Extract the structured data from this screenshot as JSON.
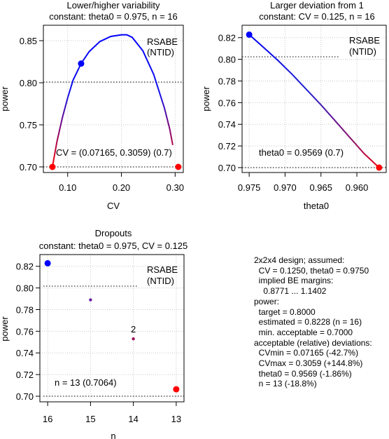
{
  "chart_data": [
    {
      "type": "line",
      "title": "Lower/higher variability",
      "subtitle": "constant: theta0 = 0.975, n = 16",
      "xlabel": "CV",
      "ylabel": "power",
      "xlim": [
        0.06,
        0.31
      ],
      "ylim": [
        0.7,
        0.86
      ],
      "xticks": [
        0.1,
        0.2,
        0.3
      ],
      "xtick_labels": [
        "0.10",
        "0.20",
        "0.30"
      ],
      "yticks": [
        0.7,
        0.75,
        0.8,
        0.85
      ],
      "ytick_labels": [
        "0.70",
        "0.75",
        "0.80",
        "0.85"
      ],
      "grid": true,
      "target": 0.8,
      "legend": [
        "RSABE",
        "(NTID)"
      ],
      "legend_position": "top-right",
      "annotation": "CV = (0.07165, 0.3059) (0.7)",
      "series": [
        {
          "x": [
            0.07165,
            0.08,
            0.09,
            0.1,
            0.11,
            0.125,
            0.14,
            0.16,
            0.18,
            0.2,
            0.21,
            0.22,
            0.24,
            0.26,
            0.28,
            0.29,
            0.2955
          ],
          "y": [
            0.7,
            0.73,
            0.758,
            0.782,
            0.803,
            0.8228,
            0.837,
            0.849,
            0.855,
            0.857,
            0.857,
            0.854,
            0.838,
            0.81,
            0.77,
            0.745,
            0.726
          ]
        }
      ],
      "markers": [
        {
          "x": 0.125,
          "y": 0.8228,
          "color": "#0000ff"
        },
        {
          "x": 0.07165,
          "y": 0.7,
          "color": "#ff0000"
        },
        {
          "x": 0.3059,
          "y": 0.7,
          "color": "#ff0000"
        }
      ]
    },
    {
      "type": "line",
      "title": "Larger deviation from 1",
      "subtitle": "constant: CV = 0.125, n = 16",
      "xlabel": "theta0",
      "ylabel": "power",
      "xlim": [
        0.9756,
        0.9563
      ],
      "ylim": [
        0.7,
        0.825
      ],
      "xticks": [
        0.975,
        0.97,
        0.965,
        0.96
      ],
      "xtick_labels": [
        "0.975",
        "0.970",
        "0.965",
        "0.960"
      ],
      "yticks": [
        0.7,
        0.72,
        0.74,
        0.76,
        0.78,
        0.8,
        0.82
      ],
      "ytick_labels": [
        "0.70",
        "0.72",
        "0.74",
        "0.76",
        "0.78",
        "0.80",
        "0.82"
      ],
      "grid": true,
      "target": 0.8,
      "legend": [
        "RSABE",
        "(NTID)"
      ],
      "legend_position": "top-right",
      "annotation": "theta0 = 0.9569 (0.7)",
      "series": [
        {
          "x": [
            0.975,
            0.973,
            0.971,
            0.969,
            0.967,
            0.965,
            0.963,
            0.961,
            0.959,
            0.9569
          ],
          "y": [
            0.8228,
            0.811,
            0.799,
            0.786,
            0.772,
            0.758,
            0.743,
            0.728,
            0.713,
            0.7
          ]
        }
      ],
      "markers": [
        {
          "x": 0.975,
          "y": 0.8228,
          "color": "#0000ff"
        },
        {
          "x": 0.9569,
          "y": 0.7,
          "color": "#ff0000"
        }
      ]
    },
    {
      "type": "scatter",
      "title": "Dropouts",
      "subtitle": "constant: theta0 = 0.975, CV = 0.125",
      "xlabel": "n",
      "ylabel": "power",
      "xlim": [
        16.1,
        12.9
      ],
      "ylim": [
        0.7,
        0.825
      ],
      "xticks": [
        16,
        15,
        14,
        13
      ],
      "xtick_labels": [
        "16",
        "15",
        "14",
        "13"
      ],
      "yticks": [
        0.7,
        0.72,
        0.74,
        0.76,
        0.78,
        0.8,
        0.82
      ],
      "ytick_labels": [
        "0.70",
        "0.72",
        "0.74",
        "0.76",
        "0.78",
        "0.80",
        "0.82"
      ],
      "grid": true,
      "target": 0.8,
      "legend": [
        "RSABE",
        "(NTID)"
      ],
      "legend_position": "top-right",
      "annotation": "n = 13 (0.7064)",
      "points": [
        {
          "x": 16,
          "y": 0.8228,
          "color": "#0000ff",
          "size": "large"
        },
        {
          "x": 15,
          "y": 0.789,
          "color": "#6a1fa0",
          "size": "small"
        },
        {
          "x": 14,
          "y": 0.753,
          "color": "#a0105a",
          "size": "small",
          "label": "2"
        },
        {
          "x": 13,
          "y": 0.7064,
          "color": "#ff0000",
          "size": "large"
        }
      ]
    }
  ],
  "summary": {
    "lines": [
      "2x2x4 design; assumed:",
      "  CV = 0.1250, theta0 = 0.9750",
      "  implied BE margins:",
      "    0.8771 ... 1.1402",
      "power:",
      "  target = 0.8000",
      "  estimated = 0.8228 (n = 16)",
      "  min. acceptable = 0.7000",
      "acceptable (relative) deviations:",
      "  CVmin = 0.07165 (-42.7%)",
      "  CVmax = 0.3059 (+144.8%)",
      "  theta0 = 0.9569 (-1.86%)",
      "  n = 13 (-18.8%)"
    ]
  },
  "colors": {
    "high": "#0000ff",
    "low": "#ff0000",
    "grid": "#c8c8c8"
  }
}
